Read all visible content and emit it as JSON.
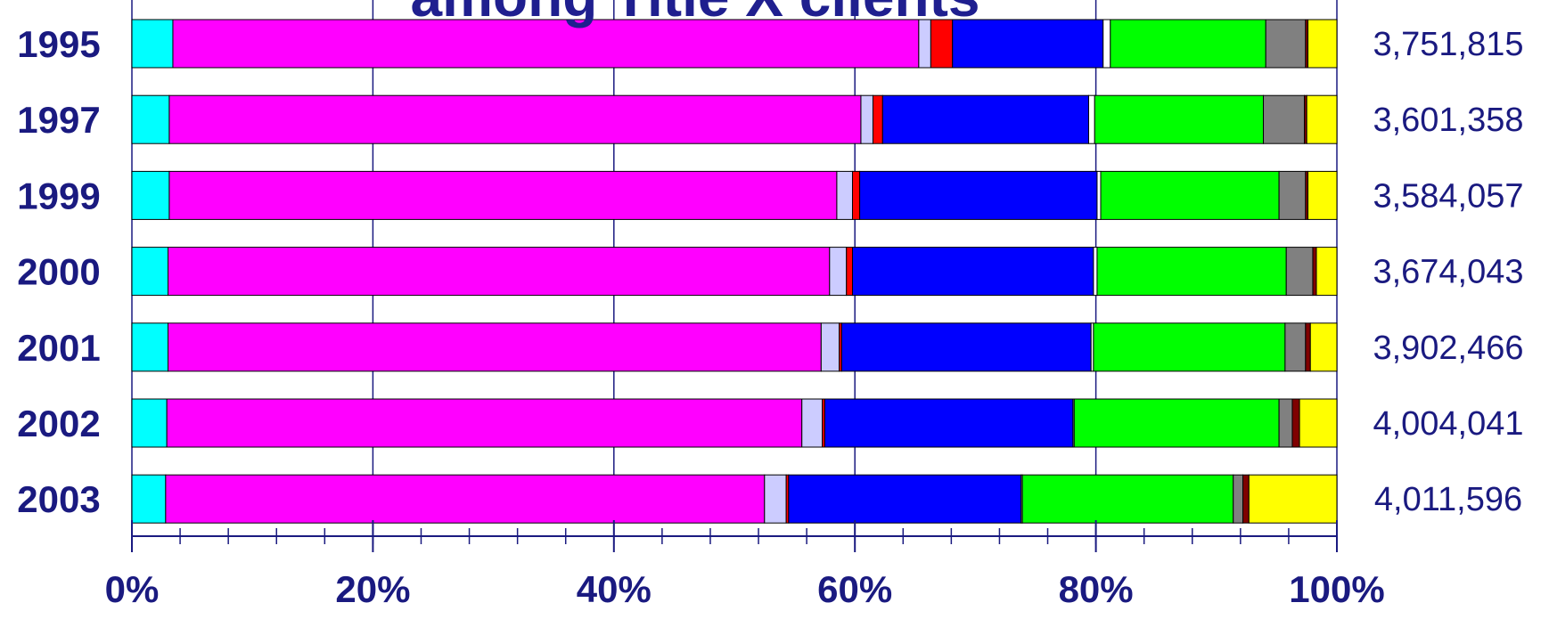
{
  "chart_data": {
    "type": "bar",
    "orientation": "horizontal",
    "stacked": "percent",
    "title": "among Title X clients",
    "categories": [
      "1995",
      "1997",
      "1999",
      "2000",
      "2001",
      "2002",
      "2003"
    ],
    "totals": [
      "3,751,815",
      "3,601,358",
      "3,584,057",
      "3,674,043",
      "3,902,466",
      "4,004,041",
      "4,011,596"
    ],
    "xticks": [
      "0%",
      "20%",
      "40%",
      "60%",
      "80%",
      "100%"
    ],
    "xlim": [
      0,
      100
    ],
    "grid": true,
    "series": [
      {
        "color": "#00ffff",
        "values": [
          3.4,
          3.1,
          3.1,
          3.0,
          3.0,
          2.9,
          2.8
        ]
      },
      {
        "color": "#ff00ff",
        "values": [
          61.9,
          57.4,
          55.4,
          54.9,
          54.2,
          52.7,
          49.7
        ]
      },
      {
        "color": "#ccccff",
        "values": [
          1.0,
          1.0,
          1.3,
          1.4,
          1.5,
          1.7,
          1.8
        ]
      },
      {
        "color": "#ff0000",
        "values": [
          1.8,
          0.8,
          0.6,
          0.5,
          0.2,
          0.2,
          0.2
        ]
      },
      {
        "color": "#0000ff",
        "values": [
          12.5,
          17.1,
          19.7,
          20.0,
          20.7,
          20.6,
          19.3
        ]
      },
      {
        "color": "#ffffff",
        "values": [
          0.6,
          0.5,
          0.3,
          0.3,
          0.2,
          0.1,
          0.1
        ]
      },
      {
        "color": "#00ff00",
        "values": [
          12.9,
          14.0,
          14.8,
          15.7,
          15.9,
          17.0,
          17.5
        ]
      },
      {
        "color": "#808080",
        "values": [
          3.3,
          3.4,
          2.2,
          2.2,
          1.7,
          1.1,
          0.8
        ]
      },
      {
        "color": "#800000",
        "values": [
          0.2,
          0.2,
          0.2,
          0.3,
          0.4,
          0.6,
          0.5
        ]
      },
      {
        "color": "#ffff00",
        "values": [
          2.4,
          2.5,
          2.4,
          1.7,
          2.2,
          3.1,
          7.3
        ]
      }
    ]
  }
}
